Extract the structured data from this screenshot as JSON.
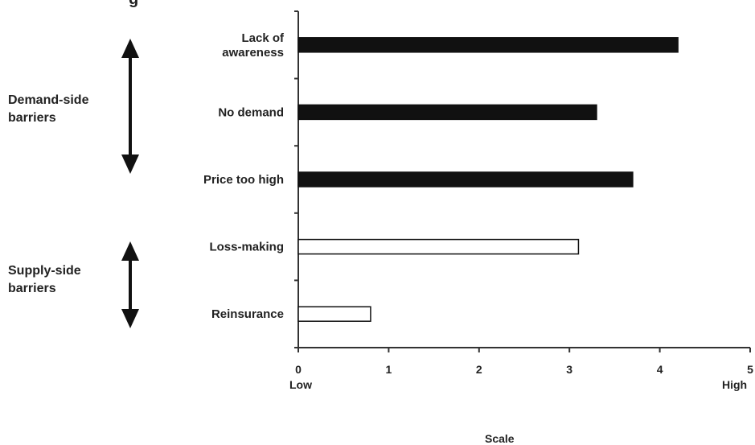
{
  "chart_data": {
    "type": "bar",
    "orientation": "horizontal",
    "categories": [
      "Lack of\nawareness",
      "No demand",
      "Price too high",
      "Loss-making",
      "Reinsurance"
    ],
    "values": [
      4.2,
      3.3,
      3.7,
      3.1,
      0.8
    ],
    "bar_colors": [
      "#111111",
      "#111111",
      "#111111",
      "#ffffff",
      "#ffffff"
    ],
    "groups": [
      {
        "label": "Demand-side\nbarriers",
        "categories": [
          "Lack of\nawareness",
          "No demand",
          "Price too high"
        ]
      },
      {
        "label": "Supply-side\nbarriers",
        "categories": [
          "Loss-making",
          "Reinsurance"
        ]
      }
    ],
    "xlim": [
      0,
      5
    ],
    "xticks": [
      "0",
      "1",
      "2",
      "3",
      "4",
      "5"
    ],
    "x_low_label": "Low",
    "x_high_label": "High",
    "xlabel": "Scale",
    "grid": false
  },
  "truncated_title_fragment": "g"
}
